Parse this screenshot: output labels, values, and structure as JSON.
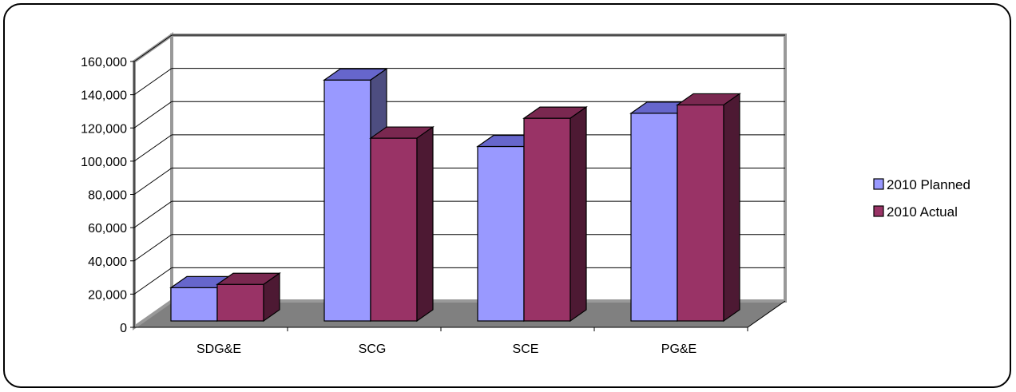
{
  "chart_data": {
    "type": "bar",
    "title": "",
    "xlabel": "",
    "ylabel": "",
    "categories": [
      "SDG&E",
      "SCG",
      "SCE",
      "PG&E"
    ],
    "series": [
      {
        "name": "2010 Planned",
        "values": [
          20000,
          145000,
          105000,
          125000
        ],
        "color": "#9999ff",
        "top_color": "#6666cc",
        "side_color": "#4d4d80"
      },
      {
        "name": "2010 Actual",
        "values": [
          22000,
          110000,
          122000,
          130000
        ],
        "color": "#993366",
        "top_color": "#7a2850",
        "side_color": "#4d1933"
      }
    ],
    "ylim": [
      0,
      160000
    ],
    "yticks": [
      "0",
      "20,000",
      "40,000",
      "60,000",
      "80,000",
      "100,000",
      "120,000",
      "140,000",
      "160,000"
    ],
    "grid": true,
    "legend_position": "right",
    "style": "3d-clustered-column"
  }
}
